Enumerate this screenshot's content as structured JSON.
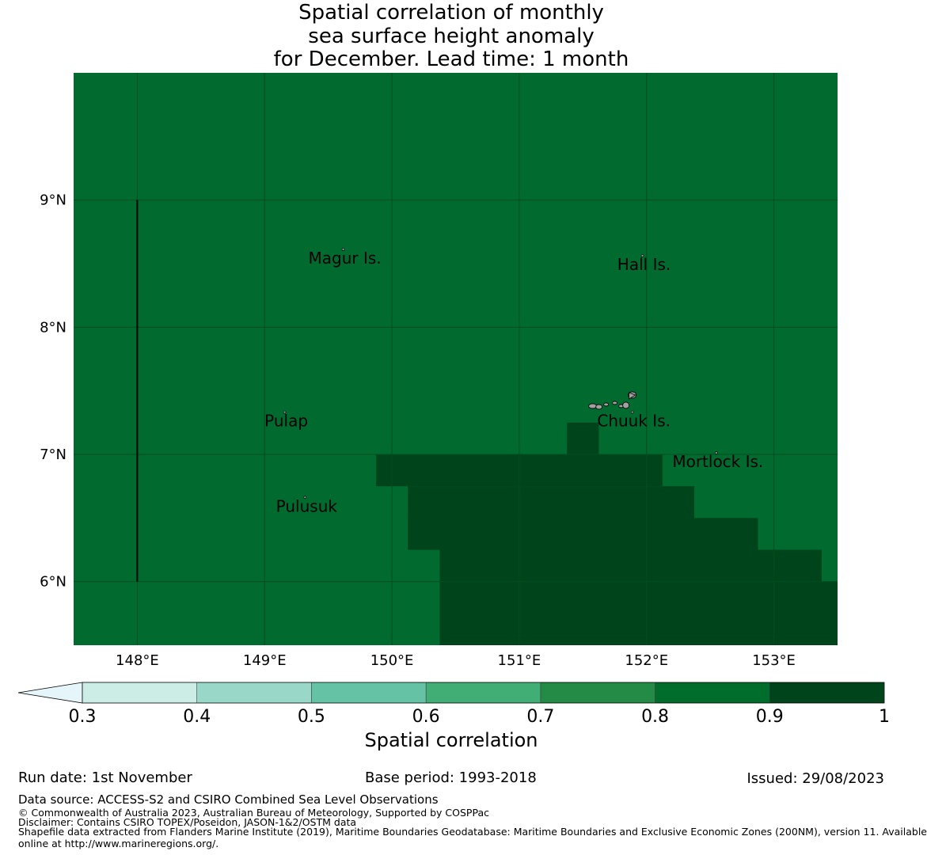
{
  "title": {
    "line1": "Spatial correlation of monthly",
    "line2": "sea surface height anomaly",
    "line3": "for December. Lead time: 1 month"
  },
  "map": {
    "lon_range": [
      147.5,
      153.5
    ],
    "lat_range": [
      5.5,
      10.0
    ],
    "lon_ticks": [
      148,
      149,
      150,
      151,
      152,
      153
    ],
    "lon_tick_labels": [
      "148°E",
      "149°E",
      "150°E",
      "151°E",
      "152°E",
      "153°E"
    ],
    "lat_ticks": [
      9,
      8,
      7,
      6
    ],
    "lat_tick_labels": [
      "9°N",
      "8°N",
      "7°N",
      "6°N"
    ],
    "background_color": "#006a2f",
    "dark_color": "#00441b",
    "grid_color": "#004d1f",
    "high_correlation_cells": [
      {
        "lon": [
          151.375,
          151.625
        ],
        "lat": [
          7.0,
          7.25
        ]
      },
      {
        "lon": [
          149.875,
          152.125
        ],
        "lat": [
          6.75,
          7.0
        ]
      },
      {
        "lon": [
          150.125,
          152.375
        ],
        "lat": [
          6.5,
          6.75
        ]
      },
      {
        "lon": [
          150.125,
          152.375
        ],
        "lat": [
          6.25,
          6.5
        ]
      },
      {
        "lon": [
          150.125,
          152.875
        ],
        "lat": [
          6.25,
          6.5
        ]
      },
      {
        "lon": [
          150.375,
          153.375
        ],
        "lat": [
          6.0,
          6.25
        ]
      },
      {
        "lon": [
          150.375,
          153.5
        ],
        "lat": [
          5.5,
          6.0
        ]
      }
    ],
    "boundary_line": {
      "lon": 148.0,
      "lat": [
        6.0,
        9.0
      ]
    },
    "places": [
      {
        "name": "Magur Is.",
        "lon": 149.63,
        "lat": 8.55
      },
      {
        "name": "Hall Is.",
        "lon": 151.98,
        "lat": 8.5
      },
      {
        "name": "Pulap",
        "lon": 149.17,
        "lat": 7.27
      },
      {
        "name": "Chuuk Is.",
        "lon": 151.9,
        "lat": 7.27
      },
      {
        "name": "Mortlock Is.",
        "lon": 152.56,
        "lat": 6.95
      },
      {
        "name": "Pulusuk",
        "lon": 149.33,
        "lat": 6.6
      }
    ]
  },
  "colorbar": {
    "bounds": [
      0.3,
      0.4,
      0.5,
      0.6,
      0.7,
      0.8,
      0.9,
      1
    ],
    "tick_labels": [
      "0.3",
      "0.4",
      "0.5",
      "0.6",
      "0.7",
      "0.8",
      "0.9",
      "1"
    ],
    "colors": [
      "#ccece6",
      "#99d8c9",
      "#66c2a4",
      "#41ae76",
      "#238b45",
      "#006d2c",
      "#00441b"
    ],
    "extend_color": "#e5f5f9",
    "label": "Spatial correlation"
  },
  "footer": {
    "run_date": "Run date: 1st November",
    "base_period": "Base period: 1993-2018",
    "issued": "Issued: 29/08/2023",
    "data_source": "Data source: ACCESS-S2 and CSIRO Combined Sea Level Observations",
    "copyright": "© Commonwealth of Australia 2023, Australian Bureau of Meteorology, Supported by COSPPac",
    "disclaimer": "Disclaimer: Contains CSIRO TOPEX/Poseidon, JASON-1&2/OSTM data",
    "shapefile_line1": "Shapefile data extracted from Flanders Marine Institute (2019), Maritime Boundaries Geodatabase: Maritime Boundaries and Exclusive Economic Zones (200NM), version 11. Available",
    "shapefile_line2": "online at http://www.marineregions.org/."
  }
}
